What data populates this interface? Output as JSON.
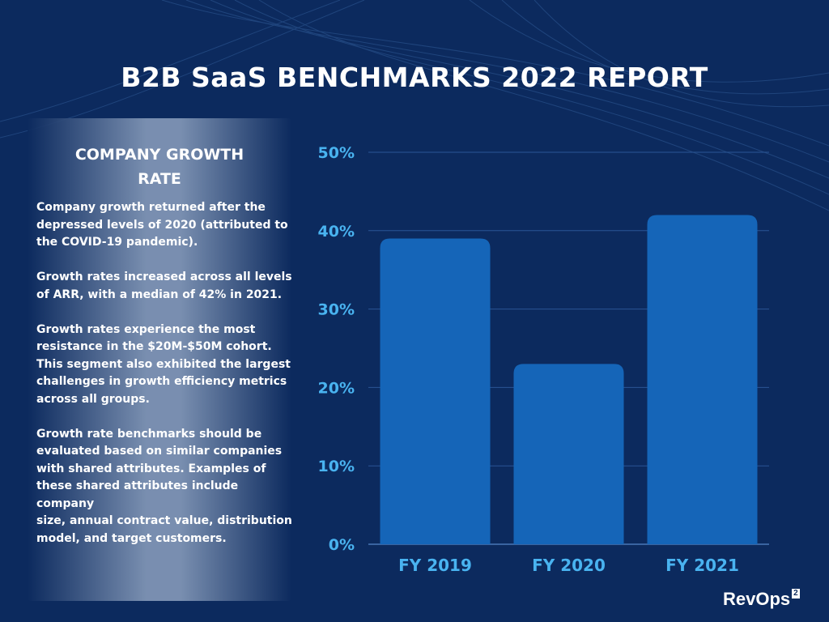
{
  "header": {
    "title": "B2B SaaS BENCHMARKS 2022 REPORT"
  },
  "sidebar": {
    "heading": "COMPANY GROWTH\nRATE",
    "paragraphs": [
      "Company growth returned after the depressed levels of 2020 (attributed to the COVID-19 pandemic).",
      "Growth rates increased across all levels of ARR, with a median of 42% in 2021.",
      "Growth rates experience the most resistance in the $20M-$50M cohort. This segment also exhibited the largest challenges in growth efficiency metrics across all groups.",
      "Growth rate benchmarks should be evaluated based on similar companies with shared attributes. Examples of these shared attributes include company\nsize, annual contract value, distribution model, and target customers."
    ]
  },
  "brand": {
    "name": "RevOps",
    "superscript": "2"
  },
  "colors": {
    "background": "#0c2a5e",
    "bar": "#1565b8",
    "tick": "#49b3f0"
  },
  "chart_data": {
    "type": "bar",
    "categories": [
      "FY 2019",
      "FY 2020",
      "FY 2021"
    ],
    "values": [
      39,
      23,
      42
    ],
    "ylim": [
      0,
      50
    ],
    "yticks": [
      0,
      10,
      20,
      30,
      40,
      50
    ],
    "ytick_labels": [
      "0%",
      "10%",
      "20%",
      "30%",
      "40%",
      "50%"
    ],
    "grid": true,
    "title": "",
    "xlabel": "",
    "ylabel": ""
  }
}
